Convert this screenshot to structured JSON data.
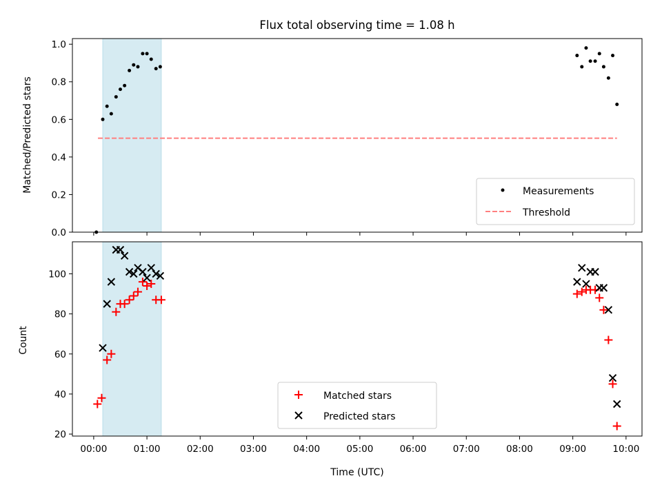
{
  "title": "Flux total observing time = 1.08 h",
  "colors": {
    "measurement": "#000000",
    "threshold": "#ff7f7f",
    "matched": "#ff0000",
    "predicted": "#000000",
    "span": "#add8e6"
  },
  "chart_data": [
    {
      "type": "scatter",
      "ylabel": "Matched/Predicted stars",
      "xlim": [
        -0.4,
        10.3
      ],
      "ylim": [
        0,
        1.03
      ],
      "yticks": [
        0.0,
        0.2,
        0.4,
        0.6,
        0.8,
        1.0
      ],
      "ytick_labels": [
        "0.0",
        "0.2",
        "0.4",
        "0.6",
        "0.8",
        "1.0"
      ],
      "highlight_span": [
        0.17,
        1.27
      ],
      "legend": {
        "placement": "lower-right",
        "entries": [
          "Measurements",
          "Threshold"
        ]
      },
      "series": [
        {
          "name": "Measurements",
          "marker": "dot",
          "x": [
            0.05,
            0.17,
            0.25,
            0.33,
            0.42,
            0.5,
            0.58,
            0.67,
            0.75,
            0.83,
            0.92,
            1.0,
            1.08,
            1.17,
            1.25,
            9.08,
            9.17,
            9.25,
            9.33,
            9.42,
            9.5,
            9.58,
            9.67,
            9.75,
            9.83
          ],
          "y": [
            0.0,
            0.6,
            0.67,
            0.63,
            0.72,
            0.76,
            0.78,
            0.86,
            0.89,
            0.88,
            0.95,
            0.95,
            0.92,
            0.87,
            0.88,
            0.94,
            0.88,
            0.98,
            0.91,
            0.91,
            0.95,
            0.88,
            0.82,
            0.94,
            0.68
          ]
        },
        {
          "name": "Threshold",
          "marker": "dashed-line",
          "x": [
            0.08,
            9.83
          ],
          "y": [
            0.5,
            0.5
          ]
        }
      ]
    },
    {
      "type": "scatter",
      "ylabel": "Count",
      "xlabel": "Time (UTC)",
      "xlim": [
        -0.4,
        10.3
      ],
      "ylim": [
        19,
        116
      ],
      "yticks": [
        20,
        40,
        60,
        80,
        100
      ],
      "ytick_labels": [
        "20",
        "40",
        "60",
        "80",
        "100"
      ],
      "xticks": [
        0,
        1,
        2,
        3,
        4,
        5,
        6,
        7,
        8,
        9,
        10
      ],
      "xtick_labels": [
        "00:00",
        "01:00",
        "02:00",
        "03:00",
        "04:00",
        "05:00",
        "06:00",
        "07:00",
        "08:00",
        "09:00",
        "10:00"
      ],
      "highlight_span": [
        0.17,
        1.27
      ],
      "legend": {
        "placement": "lower-center",
        "entries": [
          "Matched stars",
          "Predicted stars"
        ]
      },
      "series": [
        {
          "name": "Matched stars",
          "marker": "plus",
          "x": [
            0.07,
            0.15,
            0.25,
            0.33,
            0.42,
            0.5,
            0.58,
            0.67,
            0.75,
            0.83,
            0.92,
            1.0,
            1.08,
            1.17,
            1.27,
            9.08,
            9.17,
            9.25,
            9.33,
            9.42,
            9.5,
            9.58,
            9.67,
            9.75,
            9.83
          ],
          "y": [
            35,
            38,
            57,
            60,
            81,
            85,
            85,
            87,
            89,
            91,
            96,
            94,
            95,
            87,
            87,
            90,
            91,
            92,
            92,
            92,
            88,
            82,
            67,
            45,
            24
          ]
        },
        {
          "name": "Predicted stars",
          "marker": "x",
          "x": [
            0.17,
            0.25,
            0.33,
            0.42,
            0.5,
            0.58,
            0.67,
            0.75,
            0.83,
            0.92,
            1.0,
            1.08,
            1.17,
            1.25,
            9.08,
            9.17,
            9.25,
            9.33,
            9.42,
            9.5,
            9.58,
            9.67,
            9.75,
            9.83
          ],
          "y": [
            63,
            85,
            96,
            112,
            112,
            109,
            101,
            100,
            103,
            101,
            98,
            103,
            100,
            99,
            96,
            103,
            95,
            101,
            101,
            93,
            93,
            82,
            48,
            35
          ]
        }
      ]
    }
  ]
}
